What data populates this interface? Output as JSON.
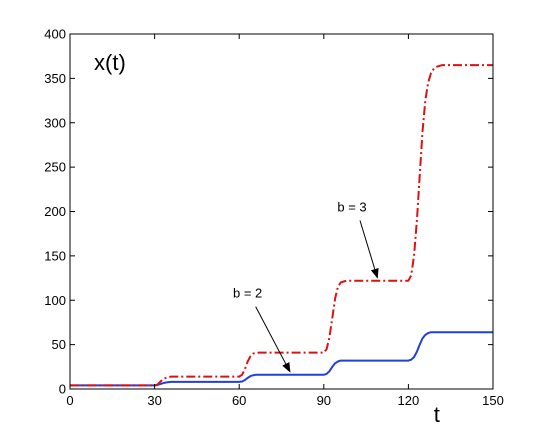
{
  "chart_data": {
    "type": "line",
    "title": "",
    "inner_label": "x(t)",
    "xlabel": "t",
    "ylabel": "",
    "xlim": [
      0,
      150
    ],
    "ylim": [
      0,
      400
    ],
    "xticks": [
      0,
      30,
      60,
      90,
      120,
      150
    ],
    "yticks": [
      0,
      50,
      100,
      150,
      200,
      250,
      300,
      350,
      400
    ],
    "grid": false,
    "series": [
      {
        "key": "b2",
        "color": "#1f3fe0",
        "style": "solid",
        "x": [
          0,
          30,
          31,
          32,
          33,
          34,
          35,
          36,
          60,
          61,
          62,
          63,
          64,
          65,
          66,
          90,
          91,
          92,
          93,
          94,
          95,
          96,
          120,
          121,
          122,
          123,
          124,
          125,
          126,
          127,
          128,
          150
        ],
        "y": [
          4,
          4,
          4.5,
          5.5,
          6.5,
          7.3,
          7.8,
          8,
          8,
          8.5,
          10,
          12.5,
          14.5,
          15.5,
          16,
          16,
          17,
          20,
          25,
          29,
          31,
          32,
          32,
          33,
          36,
          42,
          50,
          57,
          61,
          63,
          64,
          64
        ]
      },
      {
        "key": "b3",
        "color": "#dd1111",
        "style": "dashdot",
        "x": [
          0,
          30,
          31,
          32,
          33,
          34,
          35,
          36,
          60,
          61,
          62,
          63,
          64,
          65,
          66,
          67,
          90,
          91,
          92,
          93,
          94,
          95,
          96,
          97,
          98,
          120,
          121,
          122,
          123,
          124,
          125,
          126,
          127,
          128,
          129,
          130,
          131,
          132,
          150
        ],
        "y": [
          4,
          4,
          5,
          8,
          11,
          12.5,
          13.5,
          14,
          14,
          16,
          22,
          31,
          37,
          40,
          40.5,
          41,
          41,
          45,
          58,
          80,
          102,
          115,
          120,
          121,
          122,
          122,
          128,
          150,
          190,
          240,
          290,
          325,
          345,
          356,
          361,
          363,
          364,
          365,
          365
        ]
      }
    ],
    "annotations": [
      {
        "text": "b = 2",
        "target_series": "b2",
        "target": [
          78,
          16
        ],
        "text_at": [
          63,
          103
        ]
      },
      {
        "text": "b = 3",
        "target_series": "b3",
        "target": [
          109,
          122
        ],
        "text_at": [
          100,
          200
        ]
      }
    ]
  }
}
